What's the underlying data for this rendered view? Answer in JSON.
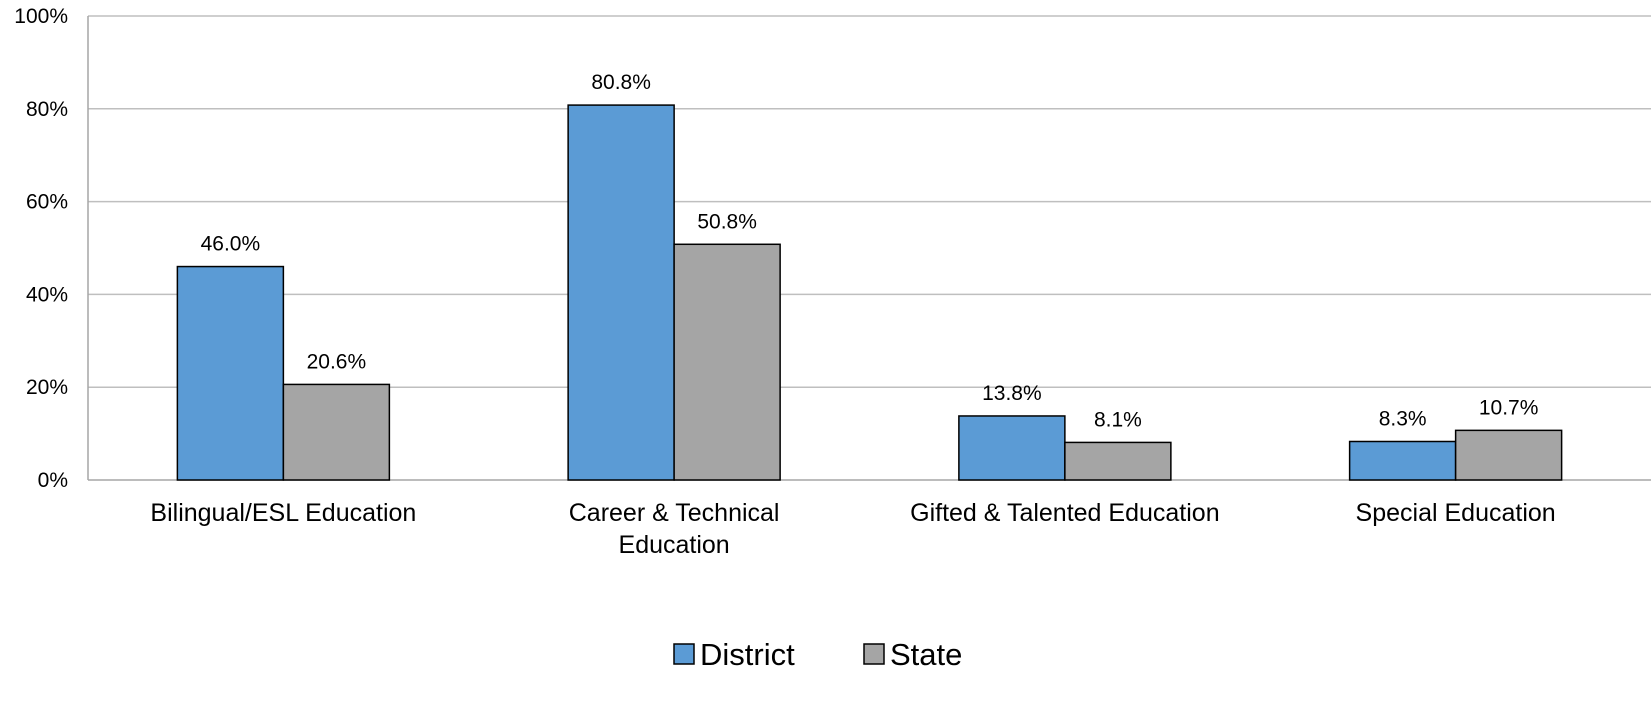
{
  "chart_data": {
    "type": "bar",
    "categories": [
      [
        "Bilingual/ESL Education"
      ],
      [
        "Career & Technical",
        "Education"
      ],
      [
        "Gifted & Talented Education"
      ],
      [
        "Special Education"
      ]
    ],
    "series": [
      {
        "name": "District",
        "values": [
          46.0,
          80.8,
          13.8,
          8.3
        ],
        "labels": [
          "46.0%",
          "80.8%",
          "13.8%",
          "8.3%"
        ],
        "color": "#5B9BD5"
      },
      {
        "name": "State",
        "values": [
          20.6,
          50.8,
          8.1,
          10.7
        ],
        "labels": [
          "20.6%",
          "50.8%",
          "8.1%",
          "10.7%"
        ],
        "color": "#A5A5A5"
      }
    ],
    "ylim": [
      0,
      100
    ],
    "yticks": [
      0,
      20,
      40,
      60,
      80,
      100
    ],
    "ytick_labels": [
      "0%",
      "20%",
      "40%",
      "60%",
      "80%",
      "100%"
    ],
    "grid": true,
    "legend_position": "bottom",
    "title": "",
    "xlabel": "",
    "ylabel": ""
  }
}
